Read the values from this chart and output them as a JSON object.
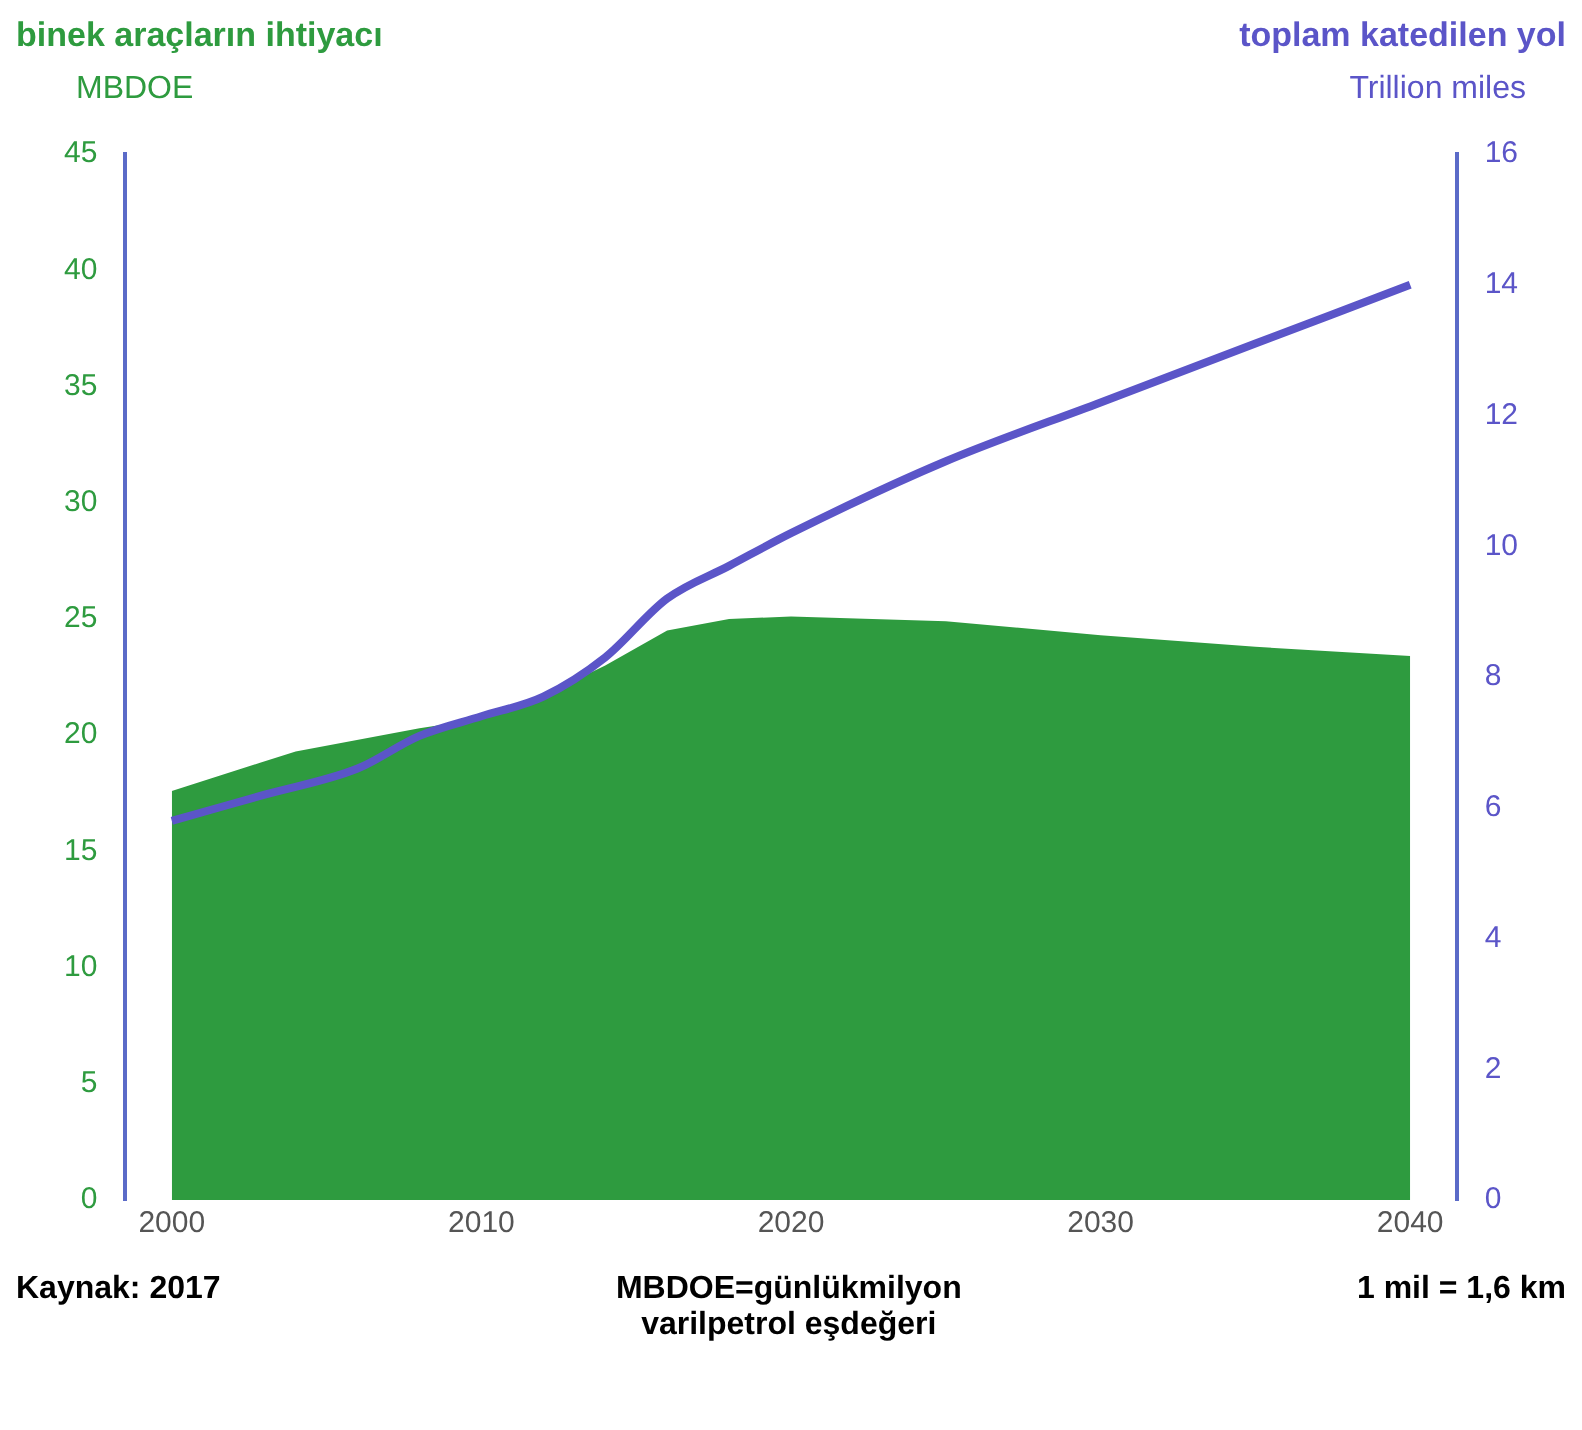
{
  "chart_data": {
    "type": "area",
    "xlabel": null,
    "ylabel": "MBDOE",
    "y2label": "Trillion miles",
    "x": [
      2000,
      2004,
      2008,
      2010,
      2012,
      2014,
      2016,
      2018,
      2020,
      2025,
      2030,
      2035,
      2040
    ],
    "series": [
      {
        "name": "binek araçların ihtiyacı",
        "type": "area",
        "color": "#2e9b3f",
        "values": [
          17.6,
          19.3,
          20.3,
          20.7,
          21.7,
          23,
          24.5,
          25,
          25.1,
          24.9,
          24.3,
          23.8,
          23.4
        ]
      },
      {
        "name": "toplam katedilen yol",
        "type": "line",
        "axis": "y2",
        "color": "#5b55c8",
        "x": [
          2000,
          2003,
          2006,
          2008,
          2010,
          2012,
          2014,
          2016,
          2018,
          2020,
          2025,
          2030,
          2035,
          2040
        ],
        "values": [
          5.8,
          6.2,
          6.6,
          7.1,
          7.4,
          7.7,
          8.3,
          9.2,
          9.7,
          10.2,
          11.3,
          12.2,
          13.1,
          14.0
        ]
      }
    ],
    "xlim": [
      1998.5,
      2041.5
    ],
    "xticks": [
      2000,
      2010,
      2020,
      2030,
      2040
    ],
    "ylim": [
      0,
      45
    ],
    "yticks": [
      0,
      5,
      10,
      15,
      20,
      25,
      30,
      35,
      40,
      45
    ],
    "y2lim": [
      0,
      16
    ],
    "y2ticks": [
      0,
      2,
      4,
      6,
      8,
      10,
      12,
      14,
      16
    ],
    "grid": false,
    "annotations": [
      "Kaynak: 2017",
      "MBDOE=günlükmilyon varilpetrol eşdeğeri",
      "1 mil = 1,6 km"
    ]
  }
}
